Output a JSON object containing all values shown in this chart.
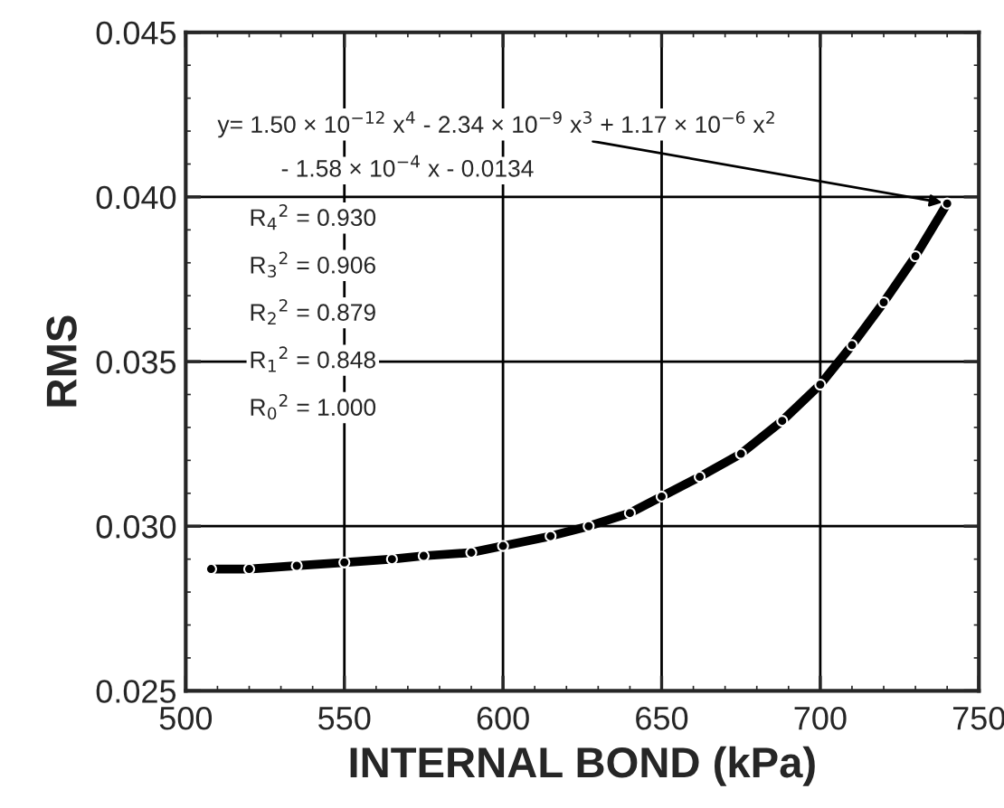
{
  "chart_data": {
    "type": "line",
    "xlabel": "INTERNAL BOND (kPa)",
    "ylabel": "RMS",
    "x": [
      508,
      520,
      535,
      550,
      565,
      575,
      590,
      600,
      615,
      627,
      640,
      650,
      662,
      675,
      688,
      700,
      710,
      720,
      730,
      740
    ],
    "series": [
      {
        "color": "#000000",
        "values": [
          0.0287,
          0.0287,
          0.0288,
          0.0289,
          0.029,
          0.0291,
          0.0292,
          0.0294,
          0.0297,
          0.03,
          0.0304,
          0.0309,
          0.0315,
          0.0322,
          0.0332,
          0.0343,
          0.0355,
          0.0368,
          0.0382,
          0.0398
        ]
      }
    ],
    "xlim": [
      500,
      750
    ],
    "xticks": [
      500,
      550,
      600,
      650,
      700,
      750
    ],
    "ylim": [
      0.025,
      0.045
    ],
    "yticks": [
      {
        "value": 0.025,
        "label": "0.025"
      },
      {
        "value": 0.03,
        "label": "0.030"
      },
      {
        "value": 0.035,
        "label": "0.035"
      },
      {
        "value": 0.04,
        "label": "0.040"
      },
      {
        "value": 0.045,
        "label": "0.045"
      }
    ],
    "grid": true,
    "marker": "circle",
    "line_style": "solid",
    "annotations": [
      "y= 1.50 × 10$^{−12}$ x$^{4}$ - 2.34 × 10$^{−9}$ x$^{3}$ + 1.17 × 10$^{−6}$ x$^{2}$",
      "- 1.58 × 10$^{−4}$ x - 0.0134",
      "R$_{4}$$^{2}$ = 0.930",
      "R$_{3}$$^{2}$ = 0.906",
      "R$_{2}$$^{2}$ = 0.879",
      "R$_{1}$$^{2}$ = 0.848",
      "R$_{0}$$^{2}$ = 1.000"
    ]
  }
}
